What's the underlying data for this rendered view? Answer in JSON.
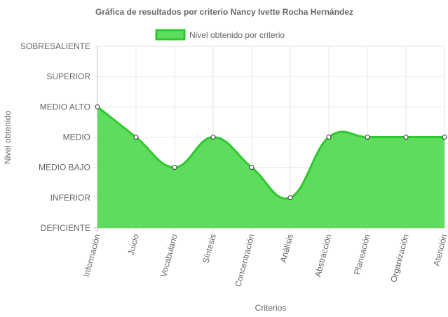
{
  "chart_data": {
    "type": "area",
    "title": "Gráfica de resultados por criterio Nancy Ivette Rocha Hernández",
    "xlabel": "Criterios",
    "ylabel": "Nivel obtenido",
    "y_levels": [
      "DEFICIENTE",
      "INFERIOR",
      "MEDIO BAJO",
      "MEDIO",
      "MEDIO ALTO",
      "SUPERIOR",
      "SOBRESALIENTE"
    ],
    "ylim": [
      0,
      6
    ],
    "categories": [
      "Información",
      "Juicio",
      "Vocabulario",
      "Síntesis",
      "Concentración",
      "Análisis",
      "Abstracción",
      "Planeación",
      "Organización",
      "Atención"
    ],
    "series": [
      {
        "name": "Nivel obtenido por criterio",
        "values": [
          4,
          3,
          2,
          3,
          2,
          1,
          3,
          3,
          3,
          3
        ]
      }
    ],
    "legend_position": "top",
    "grid": true,
    "colors": {
      "fill": "#5ddc5d",
      "line": "#2ec92e",
      "grid": "#e6e6e6",
      "grid_zero": "#bdbdbd"
    }
  }
}
